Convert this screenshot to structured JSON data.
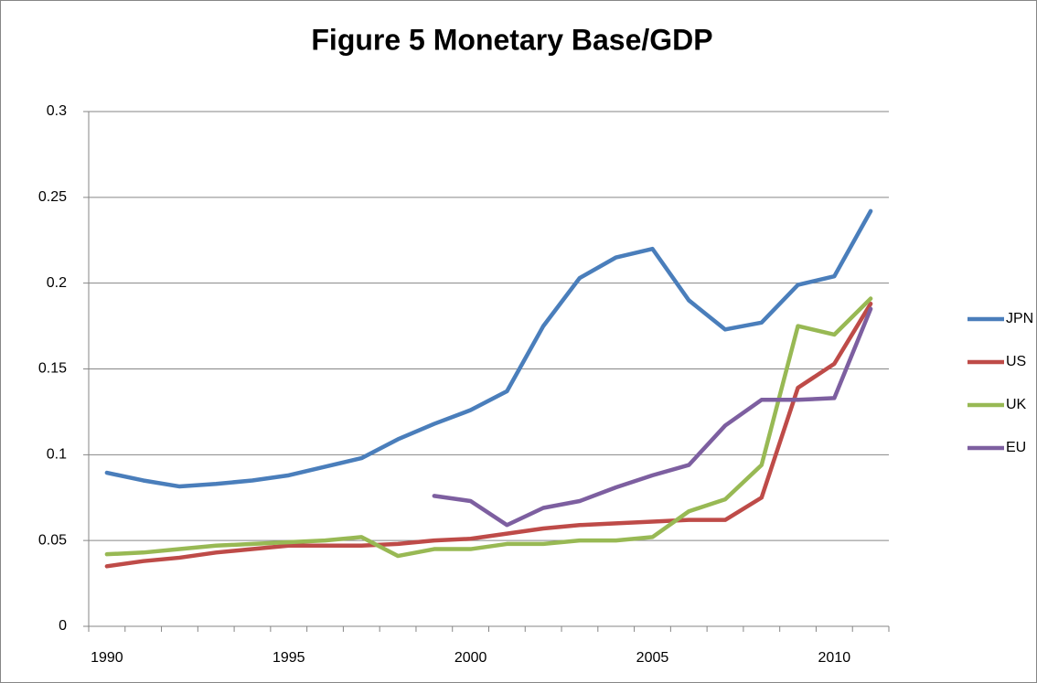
{
  "chart_data": {
    "type": "line",
    "title": "Figure 5 Monetary Base/GDP",
    "categories": [
      "1990",
      null,
      null,
      null,
      null,
      "1995",
      null,
      null,
      null,
      null,
      "2000",
      null,
      null,
      null,
      null,
      "2005",
      null,
      null,
      null,
      null,
      "2010",
      null
    ],
    "series": [
      {
        "name": "JPN",
        "color": "#4a7ebb",
        "values": [
          0.0895,
          0.085,
          0.0815,
          0.083,
          0.085,
          0.088,
          0.093,
          0.098,
          0.109,
          0.118,
          0.126,
          0.137,
          0.175,
          0.203,
          0.215,
          0.22,
          0.19,
          0.173,
          0.177,
          0.199,
          0.204,
          0.242
        ]
      },
      {
        "name": "US",
        "color": "#be4b48",
        "values": [
          0.035,
          0.038,
          0.04,
          0.043,
          0.045,
          0.047,
          0.047,
          0.047,
          0.048,
          0.05,
          0.051,
          0.054,
          0.057,
          0.059,
          0.06,
          0.061,
          0.062,
          0.062,
          0.075,
          0.139,
          0.153,
          0.188
        ]
      },
      {
        "name": "UK",
        "color": "#98b954",
        "values": [
          0.042,
          0.043,
          0.045,
          0.047,
          0.048,
          0.049,
          0.05,
          0.052,
          0.041,
          0.045,
          0.045,
          0.048,
          0.048,
          0.05,
          0.05,
          0.052,
          0.067,
          0.074,
          0.094,
          0.175,
          0.17,
          0.191
        ]
      },
      {
        "name": "EU",
        "color": "#7d5fa0",
        "values": [
          null,
          null,
          null,
          null,
          null,
          null,
          null,
          null,
          null,
          0.076,
          0.073,
          0.059,
          0.069,
          0.073,
          0.081,
          0.088,
          0.094,
          0.117,
          0.132,
          0.132,
          0.133,
          0.185
        ]
      }
    ],
    "ylim": [
      0,
      0.3
    ],
    "yticks": [
      0,
      0.05,
      0.1,
      0.15,
      0.2,
      0.25,
      0.3
    ],
    "grid": true,
    "legend": "right"
  }
}
